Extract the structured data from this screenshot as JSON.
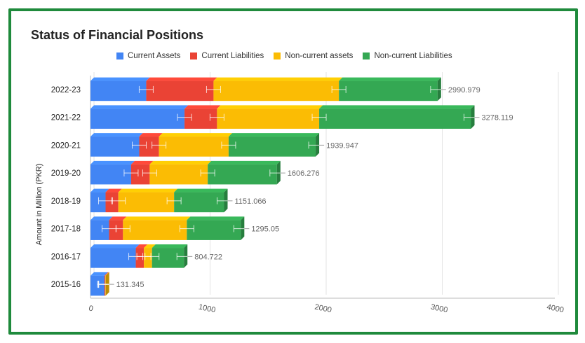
{
  "chart_data": {
    "type": "bar",
    "orientation": "horizontal",
    "stacked": true,
    "title": "Status of Financial Positions",
    "xlabel": "",
    "ylabel": "Amount in Million (PKR)",
    "xlim": [
      0,
      4000
    ],
    "x_ticks": [
      0,
      1000,
      2000,
      3000,
      4000
    ],
    "legend_position": "top",
    "grid": true,
    "categories": [
      "2022-23",
      "2021-22",
      "2020-21",
      "2019-20",
      "2018-19",
      "2017-18",
      "2016-17",
      "2015-16"
    ],
    "series": [
      {
        "name": "Current Assets",
        "color": "#4285f4",
        "values": [
          480,
          810,
          420,
          350,
          130,
          160,
          390,
          120
        ]
      },
      {
        "name": "Current Liabilities",
        "color": "#ea4335",
        "values": [
          580,
          280,
          170,
          160,
          110,
          120,
          70,
          8
        ]
      },
      {
        "name": "Non-current assets",
        "color": "#fbbc04",
        "values": [
          1080,
          880,
          600,
          500,
          480,
          550,
          70,
          3
        ]
      },
      {
        "name": "Non-current Liabilities",
        "color": "#34a853",
        "values": [
          850,
          1308,
          750,
          596,
          431,
          465,
          275,
          0
        ]
      }
    ],
    "totals": [
      2990.979,
      3278.119,
      1939.947,
      1606.276,
      1151.066,
      1295.05,
      804.722,
      131.345
    ],
    "total_labels": [
      "2990.979",
      "3278.119",
      "1939.947",
      "1606.276",
      "1151.066",
      "1295.05",
      "804.722",
      "131.345"
    ]
  }
}
